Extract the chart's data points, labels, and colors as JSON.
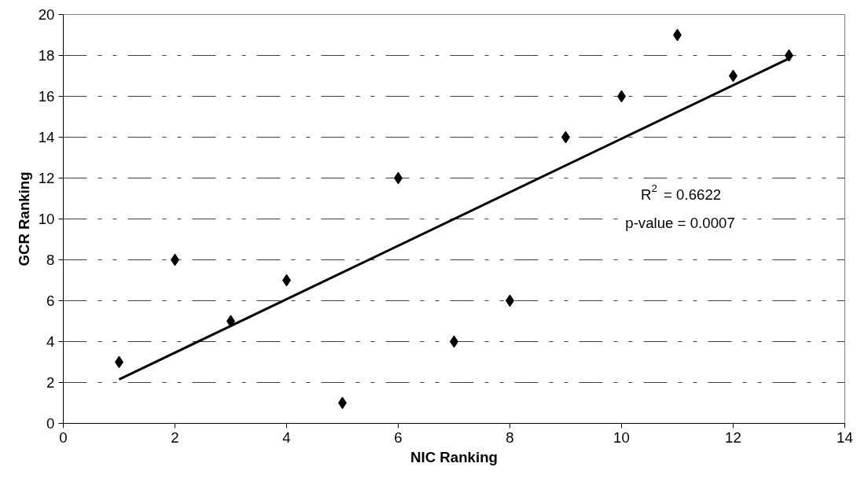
{
  "chart_data": {
    "type": "scatter",
    "xlabel": "NIC Ranking",
    "ylabel": "GCR Ranking",
    "x": [
      1,
      2,
      3,
      4,
      5,
      6,
      7,
      8,
      9,
      10,
      11,
      12,
      13
    ],
    "series": [
      {
        "color": "#000000",
        "marker": "diamond",
        "values": [
          3,
          8,
          5,
          7,
          1,
          12,
          4,
          6,
          14,
          16,
          19,
          17,
          18
        ]
      },
      {
        "type": "line",
        "color": "#000000",
        "x": [
          1,
          13
        ],
        "values": [
          2.15,
          17.85
        ],
        "line_style": "solid",
        "marker": "none"
      }
    ],
    "annotations": [
      "R$^{2}$ = 0.6622",
      "p-value = 0.0007"
    ],
    "xlim": [
      0,
      14
    ],
    "ylim": [
      0,
      20
    ],
    "xticks": [
      0,
      2,
      4,
      6,
      8,
      10,
      12,
      14
    ],
    "yticks": [
      0,
      2,
      4,
      6,
      8,
      10,
      12,
      14,
      16,
      18,
      20
    ],
    "grid": "y"
  }
}
